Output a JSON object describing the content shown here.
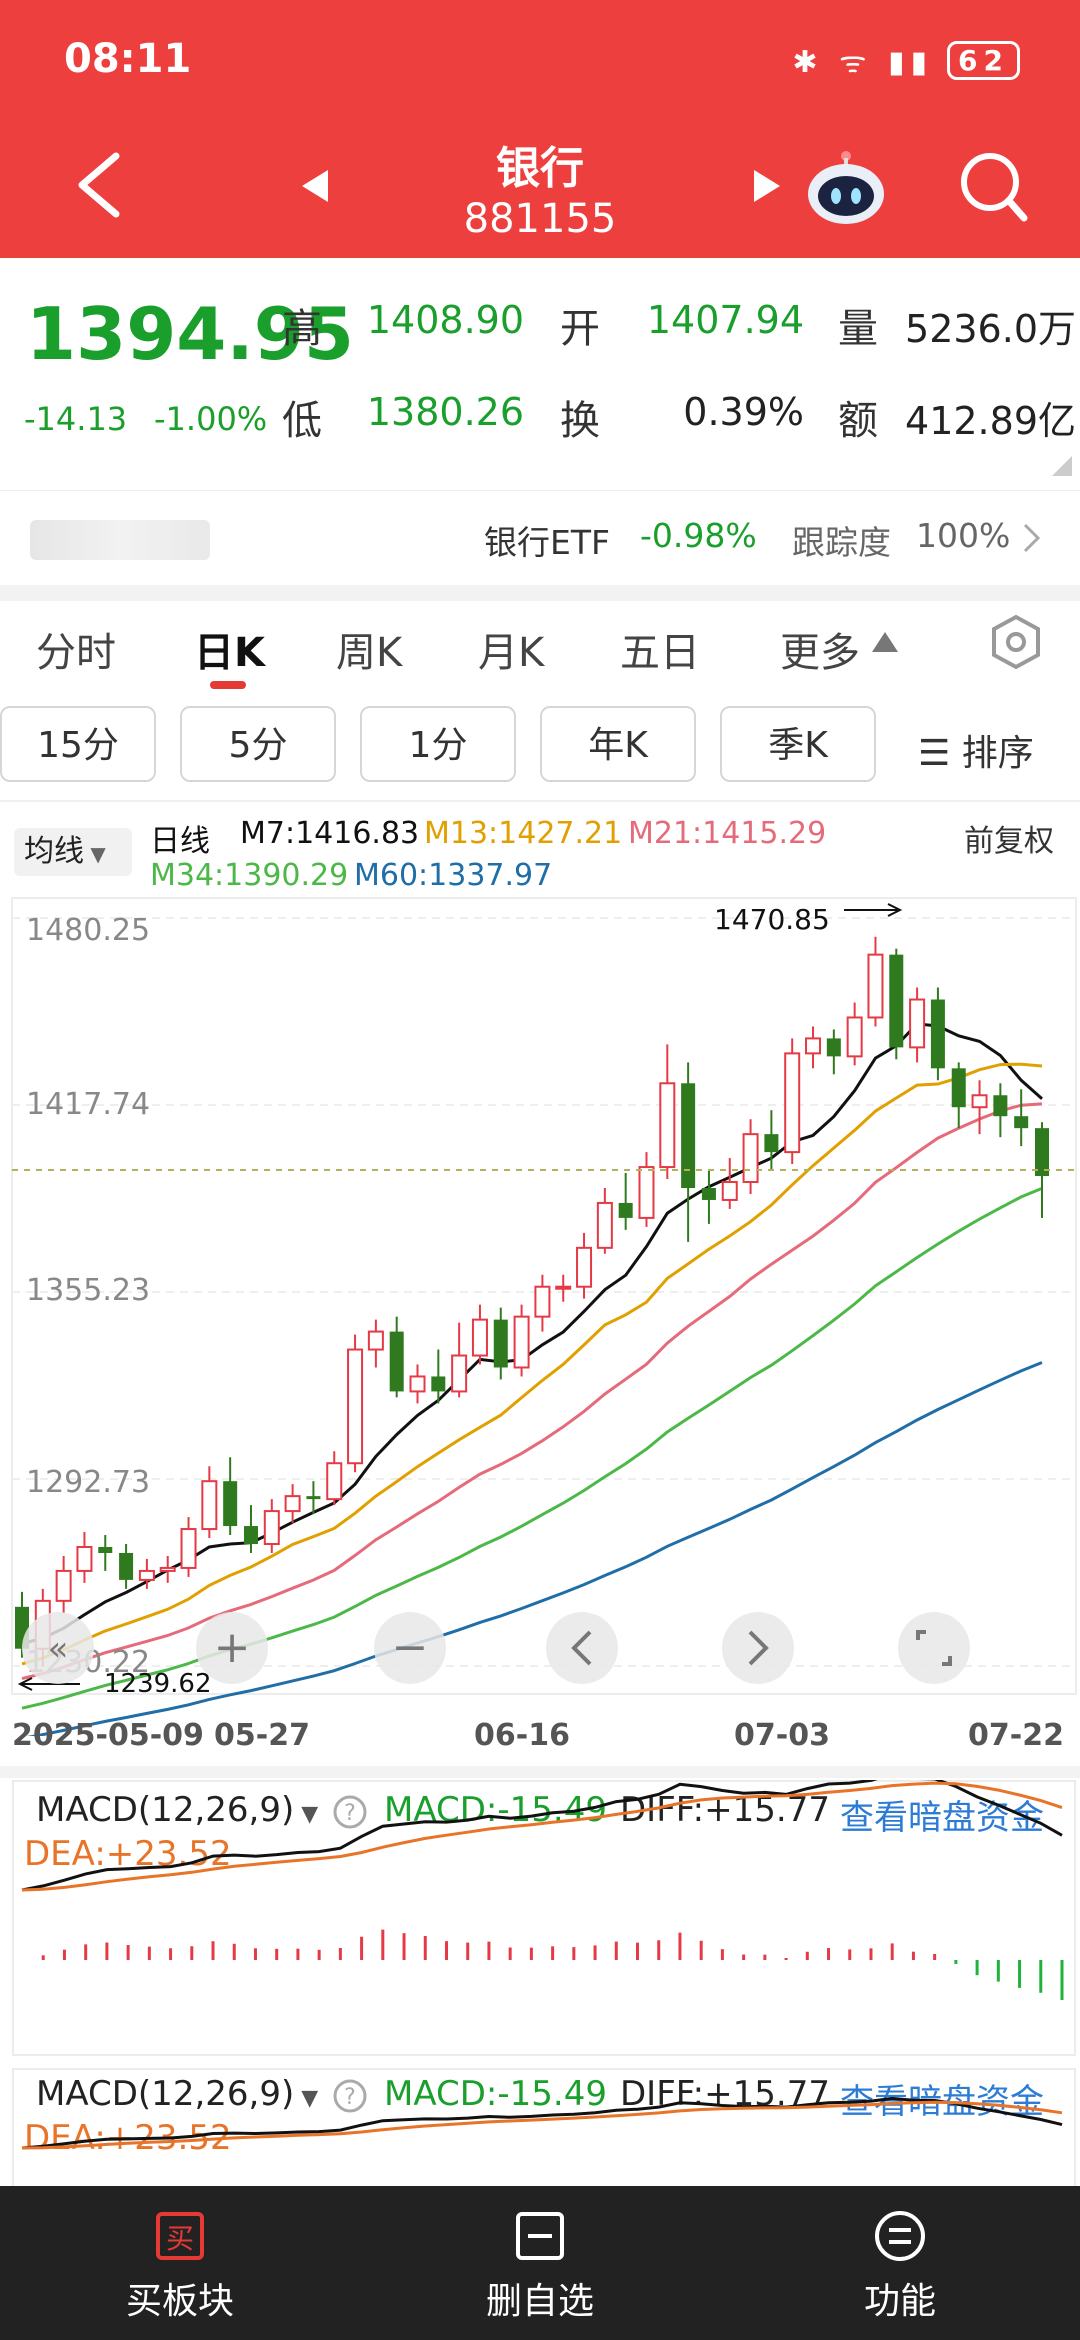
{
  "status": {
    "time": "08:11",
    "battery": "62"
  },
  "header": {
    "title": "银行",
    "code": "881155"
  },
  "quote": {
    "price": "1394.95",
    "change": "-14.13",
    "change_pct": "-1.00%",
    "high_label": "高",
    "high": "1408.90",
    "open_label": "开",
    "open": "1407.94",
    "volume_label": "量",
    "volume": "5236.0万",
    "low_label": "低",
    "low": "1380.26",
    "turnover_label": "换",
    "turnover": "0.39%",
    "amount_label": "额",
    "amount": "412.89亿"
  },
  "etf": {
    "name": "银行ETF",
    "change": "-0.98%",
    "tracking_label": "跟踪度",
    "tracking": "100%"
  },
  "tabs": [
    {
      "label": "分时"
    },
    {
      "label": "日K"
    },
    {
      "label": "周K"
    },
    {
      "label": "月K"
    },
    {
      "label": "五日"
    },
    {
      "label": "更多"
    }
  ],
  "period_buttons": [
    {
      "label": "15分"
    },
    {
      "label": "5分"
    },
    {
      "label": "1分"
    },
    {
      "label": "年K"
    },
    {
      "label": "季K"
    }
  ],
  "sort_label": "排序",
  "legend": {
    "selector": "均线",
    "type": "日线",
    "m7": "M7:1416.83",
    "m13": "M13:1427.21",
    "m21": "M21:1415.29",
    "m34": "M34:1390.29",
    "m60": "M60:1337.97",
    "adjust": "前复权"
  },
  "chart_data": {
    "type": "candlestick",
    "y_ticks": [
      "1480.25",
      "1417.74",
      "1355.23",
      "1292.73",
      "1230.22"
    ],
    "x_ticks": [
      "2025-05-09",
      "05-27",
      "06-16",
      "07-03",
      "07-22"
    ],
    "max_label": "1470.85",
    "min_label": "1239.62",
    "ylim": [
      1230.22,
      1480.25
    ],
    "candles": [
      [
        1250,
        1236,
        1255,
        1233
      ],
      [
        1236,
        1252,
        1256,
        1230
      ],
      [
        1252,
        1262,
        1267,
        1248
      ],
      [
        1262,
        1270,
        1275,
        1258
      ],
      [
        1270,
        1268,
        1274,
        1262
      ],
      [
        1268,
        1259,
        1271,
        1256
      ],
      [
        1259,
        1262,
        1266,
        1256
      ],
      [
        1262,
        1263,
        1267,
        1258
      ],
      [
        1263,
        1276,
        1280,
        1260
      ],
      [
        1276,
        1292,
        1297,
        1273
      ],
      [
        1292,
        1277,
        1300,
        1274
      ],
      [
        1277,
        1271,
        1284,
        1268
      ],
      [
        1271,
        1282,
        1286,
        1268
      ],
      [
        1282,
        1287,
        1291,
        1278
      ],
      [
        1287,
        1286,
        1292,
        1281
      ],
      [
        1286,
        1298,
        1302,
        1284
      ],
      [
        1298,
        1336,
        1341,
        1295
      ],
      [
        1336,
        1342,
        1346,
        1330
      ],
      [
        1342,
        1322,
        1347,
        1320
      ],
      [
        1322,
        1327,
        1331,
        1318
      ],
      [
        1327,
        1322,
        1336,
        1318
      ],
      [
        1322,
        1334,
        1345,
        1320
      ],
      [
        1334,
        1346,
        1351,
        1331
      ],
      [
        1346,
        1330,
        1350,
        1326
      ],
      [
        1330,
        1347,
        1351,
        1327
      ],
      [
        1347,
        1357,
        1361,
        1342
      ],
      [
        1357,
        1357,
        1361,
        1352
      ],
      [
        1357,
        1370,
        1375,
        1353
      ],
      [
        1370,
        1385,
        1390,
        1368
      ],
      [
        1385,
        1380,
        1395,
        1376
      ],
      [
        1380,
        1397,
        1402,
        1377
      ],
      [
        1397,
        1425,
        1438,
        1393
      ],
      [
        1425,
        1390,
        1432,
        1372
      ],
      [
        1390,
        1386,
        1396,
        1378
      ],
      [
        1386,
        1392,
        1400,
        1383
      ],
      [
        1392,
        1408,
        1413,
        1388
      ],
      [
        1408,
        1402,
        1416,
        1396
      ],
      [
        1402,
        1435,
        1440,
        1398
      ],
      [
        1435,
        1440,
        1444,
        1430
      ],
      [
        1440,
        1434,
        1443,
        1428
      ],
      [
        1434,
        1447,
        1452,
        1431
      ],
      [
        1447,
        1468,
        1474,
        1444
      ],
      [
        1468,
        1437,
        1470,
        1433
      ],
      [
        1437,
        1453,
        1457,
        1432
      ],
      [
        1453,
        1430,
        1457,
        1426
      ],
      [
        1430,
        1417,
        1432,
        1410
      ],
      [
        1417,
        1421,
        1426,
        1408
      ],
      [
        1421,
        1414,
        1425,
        1407
      ],
      [
        1414,
        1410,
        1423,
        1404
      ],
      [
        1410,
        1394,
        1412,
        1380
      ]
    ],
    "macd": {
      "title": "MACD(12,26,9)",
      "macd": "MACD:-15.49",
      "diff": "DIFF:+15.77",
      "dea": "DEA:+23.52",
      "link": "查看暗盘资金"
    }
  },
  "bottom_bar": [
    {
      "label": "买板块"
    },
    {
      "label": "删自选"
    },
    {
      "label": "功能"
    }
  ],
  "colors": {
    "up": "#e53945",
    "down": "#2f7a1e",
    "header": "#ee3f3f"
  }
}
